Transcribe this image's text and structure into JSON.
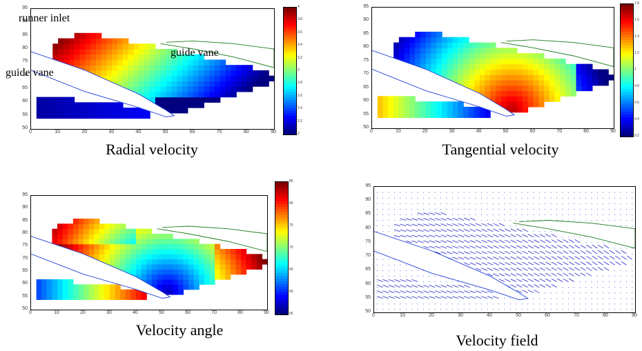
{
  "chart_data": [
    {
      "type": "heatmap",
      "title": "Radial velocity",
      "xlim": [
        0,
        90
      ],
      "ylim": [
        50,
        95
      ],
      "xticks": [
        "0",
        "10",
        "20",
        "30",
        "40",
        "50",
        "60",
        "70",
        "80",
        "90"
      ],
      "yticks": [
        "95",
        "90",
        "85",
        "80",
        "75",
        "70",
        "65",
        "60",
        "55",
        "50"
      ],
      "colorbar": {
        "range": [
          2,
          4
        ],
        "ticks": [
          "4",
          "3.8",
          "3.6",
          "3.4",
          "3.2",
          "3",
          "2.8",
          "2.6",
          "2.4",
          "2.2",
          "2"
        ]
      },
      "annotations": [
        "runner inlet",
        "guide vane",
        "guide vane"
      ]
    },
    {
      "type": "heatmap",
      "title": "Tangential velocity",
      "xlim": [
        0,
        90
      ],
      "ylim": [
        50,
        95
      ],
      "xticks": [
        "0",
        "10",
        "20",
        "30",
        "40",
        "50",
        "60",
        "70",
        "80",
        "90"
      ],
      "yticks": [
        "95",
        "90",
        "85",
        "80",
        "75",
        "70",
        "65",
        "60",
        "55",
        "50"
      ],
      "colorbar": {
        "range": [
          0.2,
          1.8
        ],
        "ticks": [
          "1.8",
          "1.6",
          "1.4",
          "1.2",
          "1",
          "0.8",
          "0.6",
          "0.4",
          "0.2"
        ]
      }
    },
    {
      "type": "heatmap",
      "title": "Velocity angle",
      "xlim": [
        0,
        90
      ],
      "ylim": [
        50,
        95
      ],
      "xticks": [
        "0",
        "10",
        "20",
        "30",
        "40",
        "50",
        "60",
        "70",
        "80",
        "90"
      ],
      "yticks": [
        "95",
        "90",
        "85",
        "80",
        "75",
        "70",
        "65",
        "60",
        "55",
        "50"
      ],
      "colorbar": {
        "range": [
          55,
          85
        ],
        "ticks": [
          "85",
          "80",
          "75",
          "70",
          "65",
          "60",
          "55"
        ]
      }
    },
    {
      "type": "scatter",
      "title": "Velocity field",
      "xlim": [
        0,
        90
      ],
      "ylim": [
        50,
        95
      ],
      "xticks": [
        "0",
        "10",
        "20",
        "30",
        "40",
        "50",
        "60",
        "70",
        "80",
        "90"
      ],
      "yticks": [
        "95",
        "90",
        "85",
        "80",
        "75",
        "70",
        "65",
        "60",
        "55",
        "50"
      ]
    }
  ],
  "colors": {
    "guide_vane_lower": "#1f3fd8",
    "guide_vane_upper": "#1a7a1a",
    "vectors": "#2222cc"
  }
}
